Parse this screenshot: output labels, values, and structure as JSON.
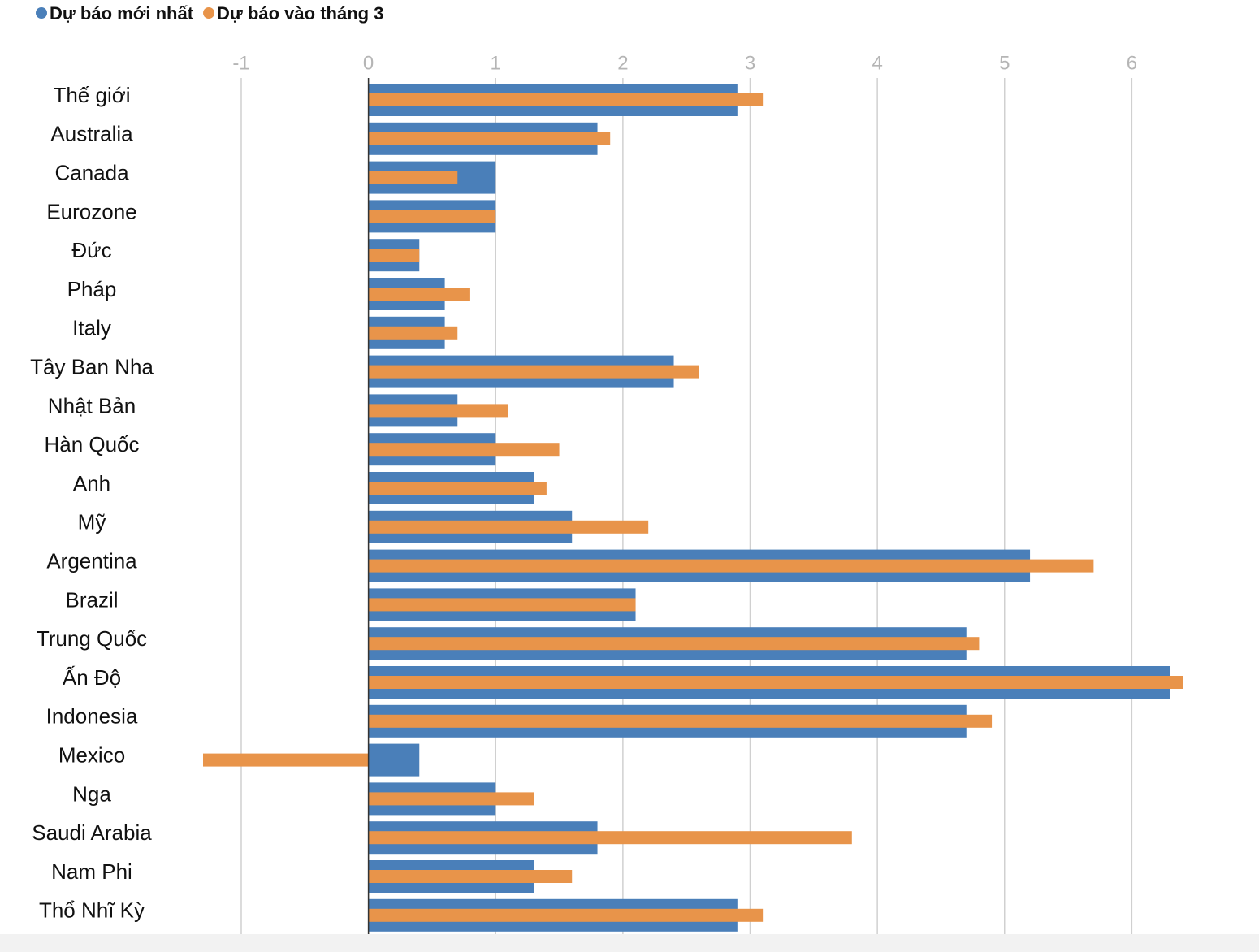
{
  "chart_data": {
    "type": "bar",
    "orientation": "horizontal",
    "categories": [
      "Thế giới",
      "Australia",
      "Canada",
      "Eurozone",
      "Đức",
      "Pháp",
      "Italy",
      "Tây Ban Nha",
      "Nhật Bản",
      "Hàn Quốc",
      "Anh",
      "Mỹ",
      "Argentina",
      "Brazil",
      "Trung Quốc",
      "Ấn Độ",
      "Indonesia",
      "Mexico",
      "Nga",
      "Saudi Arabia",
      "Nam Phi",
      "Thổ Nhĩ Kỳ"
    ],
    "series": [
      {
        "name": "Dự báo mới nhất",
        "color": "#4a7fb9",
        "values": [
          2.9,
          1.8,
          1.0,
          1.0,
          0.4,
          0.6,
          0.6,
          2.4,
          0.7,
          1.0,
          1.3,
          1.6,
          5.2,
          2.1,
          4.7,
          6.3,
          4.7,
          0.4,
          1.0,
          1.8,
          1.3,
          2.9
        ]
      },
      {
        "name": "Dự báo vào tháng 3",
        "color": "#e8944a",
        "values": [
          3.1,
          1.9,
          0.7,
          1.0,
          0.4,
          0.8,
          0.7,
          2.6,
          1.1,
          1.5,
          1.4,
          2.2,
          5.7,
          2.1,
          4.8,
          6.4,
          4.9,
          -1.3,
          1.3,
          3.8,
          1.6,
          3.1
        ]
      }
    ],
    "xlim": [
      -1.3,
      7
    ],
    "xticks": [
      -1,
      0,
      1,
      2,
      3,
      4,
      5,
      6
    ],
    "grid": true,
    "legend": "top-left"
  }
}
